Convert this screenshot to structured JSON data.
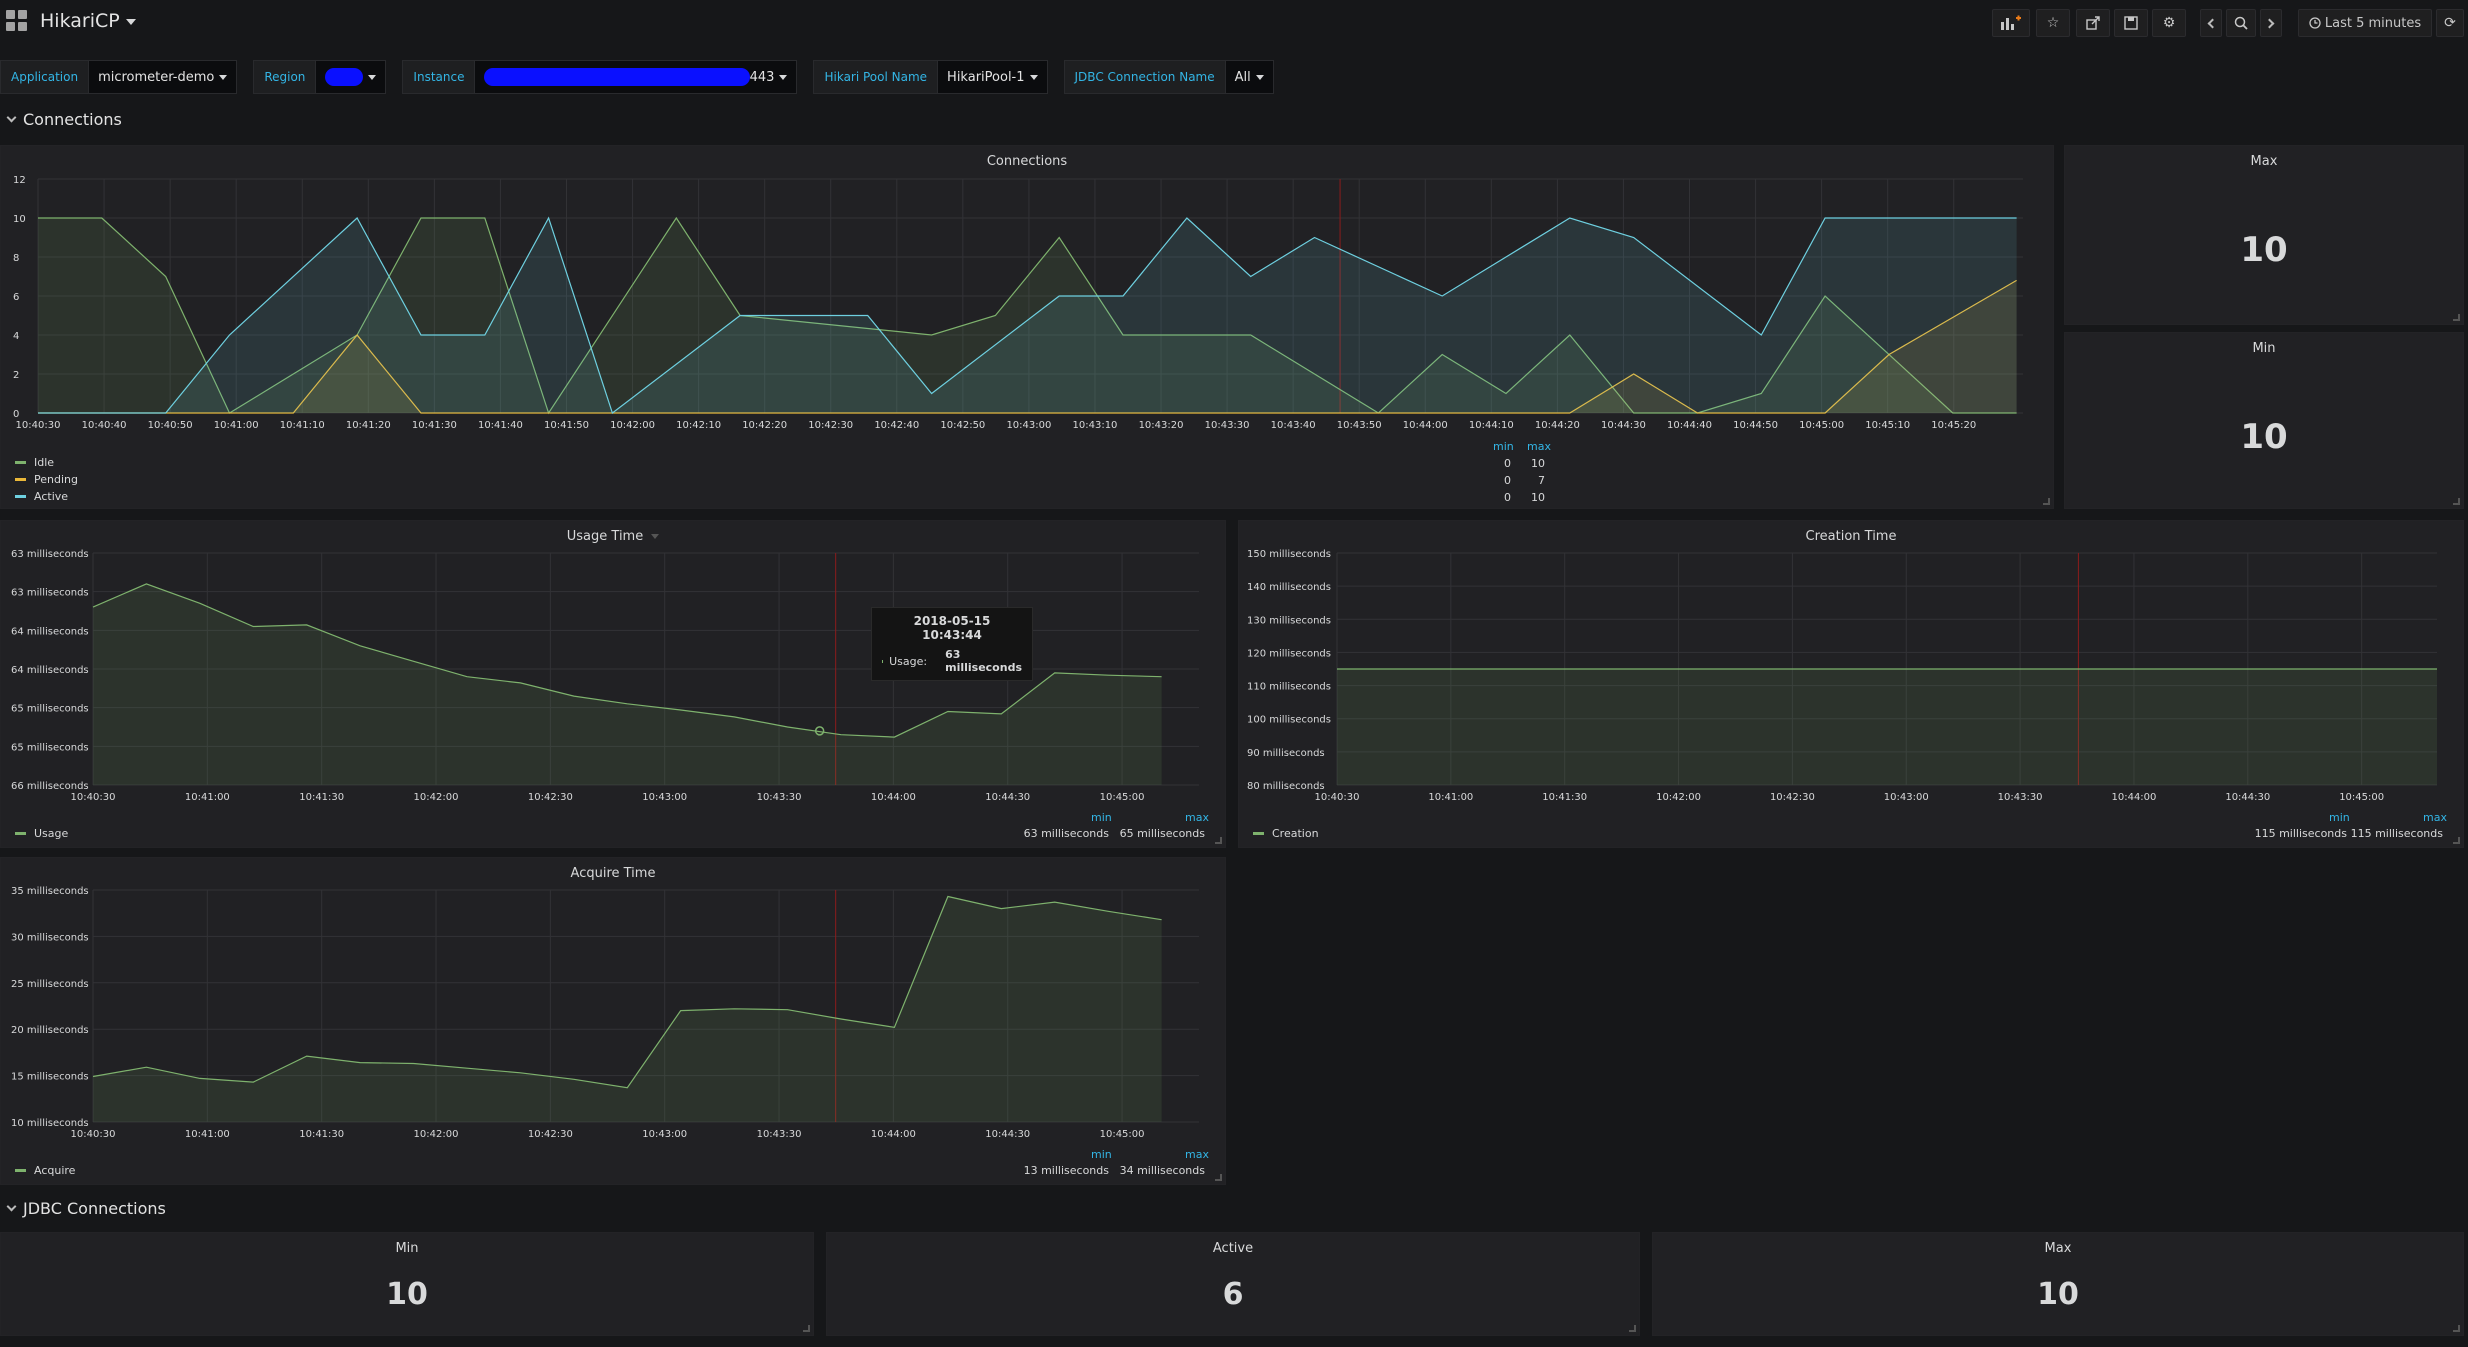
{
  "header": {
    "title": "HikariCP",
    "time_range": "Last 5 minutes",
    "colors": {
      "bg": "#161719",
      "panel": "#212124",
      "accent": "#33b5e5"
    },
    "icons": [
      "add-panel-icon",
      "star-icon",
      "share-icon",
      "save-icon",
      "settings-icon",
      "chevron-left-icon",
      "zoom-out-icon",
      "chevron-right-icon",
      "clock-icon",
      "refresh-icon"
    ]
  },
  "variables": [
    {
      "label": "Application",
      "value": "micrometer-demo"
    },
    {
      "label": "Region",
      "value": ""
    },
    {
      "label": "Instance",
      "value": "443"
    },
    {
      "label": "Hikari Pool Name",
      "value": "HikariPool-1"
    },
    {
      "label": "JDBC Connection Name",
      "value": "All"
    }
  ],
  "rows": {
    "connections": "Connections",
    "jdbc": "JDBC Connections"
  },
  "connections_panel": {
    "title": "Connections",
    "legend_headers": {
      "min": "min",
      "max": "max"
    },
    "legend": [
      {
        "name": "Idle",
        "min": "0",
        "max": "10",
        "color": "#7eb26d"
      },
      {
        "name": "Pending",
        "min": "0",
        "max": "7",
        "color": "#eab839"
      },
      {
        "name": "Active",
        "min": "0",
        "max": "10",
        "color": "#6ed0e0"
      }
    ]
  },
  "stats": {
    "max": {
      "title": "Max",
      "value": "10"
    },
    "min": {
      "title": "Min",
      "value": "10"
    }
  },
  "usage_panel": {
    "title": "Usage Time",
    "legend_name": "Usage",
    "min_label": "min",
    "max_label": "max",
    "min_value": "63 milliseconds",
    "max_value": "65 milliseconds",
    "tooltip": {
      "time": "2018-05-15 10:43:44",
      "series": "Usage:",
      "value": "63 milliseconds"
    }
  },
  "creation_panel": {
    "title": "Creation Time",
    "legend_name": "Creation",
    "min_label": "min",
    "max_label": "max",
    "min_value": "115 milliseconds",
    "max_value": "115 milliseconds"
  },
  "acquire_panel": {
    "title": "Acquire Time",
    "legend_name": "Acquire",
    "min_label": "min",
    "max_label": "max",
    "min_value": "13 milliseconds",
    "max_value": "34 milliseconds"
  },
  "jdbc_stats": {
    "min": {
      "title": "Min",
      "value": "10"
    },
    "active": {
      "title": "Active",
      "value": "6"
    },
    "max": {
      "title": "Max",
      "value": "10"
    }
  },
  "chart_data": [
    {
      "type": "area",
      "title": "Connections",
      "x": [
        "10:40:30",
        "10:40:40",
        "10:40:50",
        "10:41:00",
        "10:41:10",
        "10:41:20",
        "10:41:30",
        "10:41:40",
        "10:41:50",
        "10:42:00",
        "10:42:10",
        "10:42:20",
        "10:42:30",
        "10:42:40",
        "10:42:50",
        "10:43:00",
        "10:43:10",
        "10:43:20",
        "10:43:30",
        "10:43:40",
        "10:43:50",
        "10:44:00",
        "10:44:10",
        "10:44:20",
        "10:44:30",
        "10:44:40",
        "10:44:50",
        "10:45:00",
        "10:45:10",
        "10:45:20"
      ],
      "ylim": [
        0,
        12
      ],
      "yticks": [
        "0",
        "2",
        "4",
        "6",
        "8",
        "10",
        "12"
      ],
      "series": [
        {
          "name": "Idle",
          "color": "#7eb26d",
          "points": [
            [
              0,
              10
            ],
            [
              1,
              10
            ],
            [
              2,
              7
            ],
            [
              3,
              0
            ],
            [
              5,
              4
            ],
            [
              6,
              10
            ],
            [
              7,
              10
            ],
            [
              8,
              0
            ],
            [
              10,
              10
            ],
            [
              11,
              5
            ],
            [
              14,
              4
            ],
            [
              15,
              5
            ],
            [
              16,
              9
            ],
            [
              17,
              4
            ],
            [
              19,
              4
            ],
            [
              21,
              0
            ],
            [
              22,
              3
            ],
            [
              23,
              1
            ],
            [
              24,
              4
            ],
            [
              25,
              0
            ],
            [
              26,
              0
            ],
            [
              27,
              1
            ],
            [
              28,
              6
            ],
            [
              30,
              0
            ],
            [
              31,
              0
            ]
          ]
        },
        {
          "name": "Pending",
          "color": "#eab839",
          "points": [
            [
              0,
              0
            ],
            [
              4,
              0
            ],
            [
              5,
              4
            ],
            [
              6,
              0
            ],
            [
              24,
              0
            ],
            [
              25,
              2
            ],
            [
              26,
              0
            ],
            [
              28,
              0
            ],
            [
              29,
              3
            ],
            [
              31,
              6.8
            ]
          ]
        },
        {
          "name": "Active",
          "color": "#6ed0e0",
          "points": [
            [
              0,
              0
            ],
            [
              2,
              0
            ],
            [
              3,
              4
            ],
            [
              5,
              10
            ],
            [
              6,
              4
            ],
            [
              7,
              4
            ],
            [
              8,
              10
            ],
            [
              9,
              0
            ],
            [
              11,
              5
            ],
            [
              13,
              5
            ],
            [
              14,
              1
            ],
            [
              16,
              6
            ],
            [
              17,
              6
            ],
            [
              18,
              10
            ],
            [
              19,
              7
            ],
            [
              20,
              9
            ],
            [
              22,
              6
            ],
            [
              24,
              10
            ],
            [
              25,
              9
            ],
            [
              27,
              4
            ],
            [
              28,
              10
            ],
            [
              31,
              10
            ]
          ]
        }
      ]
    },
    {
      "type": "area",
      "title": "Usage Time",
      "x": [
        "10:40:30",
        "10:41:00",
        "10:41:30",
        "10:42:00",
        "10:42:30",
        "10:43:00",
        "10:43:30",
        "10:44:00",
        "10:44:30",
        "10:45:00"
      ],
      "yticks": [
        "66 milliseconds",
        "65 milliseconds",
        "65 milliseconds",
        "64 milliseconds",
        "64 milliseconds",
        "63 milliseconds",
        "63 milliseconds"
      ],
      "ylim": [
        62.8,
        65.8
      ],
      "series": [
        {
          "name": "Usage",
          "color": "#7eb26d",
          "points": [
            [
              0,
              65.1
            ],
            [
              1,
              65.4
            ],
            [
              2,
              65.15
            ],
            [
              3,
              64.85
            ],
            [
              4,
              64.87
            ],
            [
              5,
              64.6
            ],
            [
              6,
              64.4
            ],
            [
              7,
              64.2
            ],
            [
              8,
              64.12
            ],
            [
              9,
              63.95
            ],
            [
              10,
              63.85
            ],
            [
              11,
              63.77
            ],
            [
              12,
              63.68
            ],
            [
              13,
              63.55
            ],
            [
              14,
              63.45
            ],
            [
              15,
              63.42
            ],
            [
              16,
              63.75
            ],
            [
              17,
              63.72
            ],
            [
              18,
              64.25
            ],
            [
              19,
              64.22
            ],
            [
              20,
              64.2
            ]
          ]
        }
      ]
    },
    {
      "type": "area",
      "title": "Creation Time",
      "x": [
        "10:40:30",
        "10:41:00",
        "10:41:30",
        "10:42:00",
        "10:42:30",
        "10:43:00",
        "10:43:30",
        "10:44:00",
        "10:44:30",
        "10:45:00"
      ],
      "yticks": [
        "80 milliseconds",
        "90 milliseconds",
        "100 milliseconds",
        "110 milliseconds",
        "120 milliseconds",
        "130 milliseconds",
        "140 milliseconds",
        "150 milliseconds"
      ],
      "ylim": [
        80,
        150
      ],
      "series": [
        {
          "name": "Creation",
          "color": "#7eb26d",
          "points": [
            [
              0,
              115
            ],
            [
              1,
              115
            ]
          ]
        }
      ]
    },
    {
      "type": "area",
      "title": "Acquire Time",
      "x": [
        "10:40:30",
        "10:41:00",
        "10:41:30",
        "10:42:00",
        "10:42:30",
        "10:43:00",
        "10:43:30",
        "10:44:00",
        "10:44:30",
        "10:45:00"
      ],
      "yticks": [
        "10 milliseconds",
        "15 milliseconds",
        "20 milliseconds",
        "25 milliseconds",
        "30 milliseconds",
        "35 milliseconds"
      ],
      "ylim": [
        10,
        35
      ],
      "series": [
        {
          "name": "Acquire",
          "color": "#7eb26d",
          "points": [
            [
              0,
              14.9
            ],
            [
              1,
              15.9
            ],
            [
              2,
              14.7
            ],
            [
              3,
              14.3
            ],
            [
              4,
              17.1
            ],
            [
              5,
              16.4
            ],
            [
              6,
              16.3
            ],
            [
              7,
              15.8
            ],
            [
              8,
              15.3
            ],
            [
              9,
              14.6
            ],
            [
              10,
              13.7
            ],
            [
              11,
              22
            ],
            [
              12,
              22.2
            ],
            [
              13,
              22.1
            ],
            [
              14,
              21.1
            ],
            [
              15,
              20.2
            ],
            [
              16,
              34.3
            ],
            [
              17,
              33
            ],
            [
              18,
              33.7
            ],
            [
              19,
              32.7
            ],
            [
              20,
              31.8
            ]
          ]
        }
      ]
    }
  ]
}
